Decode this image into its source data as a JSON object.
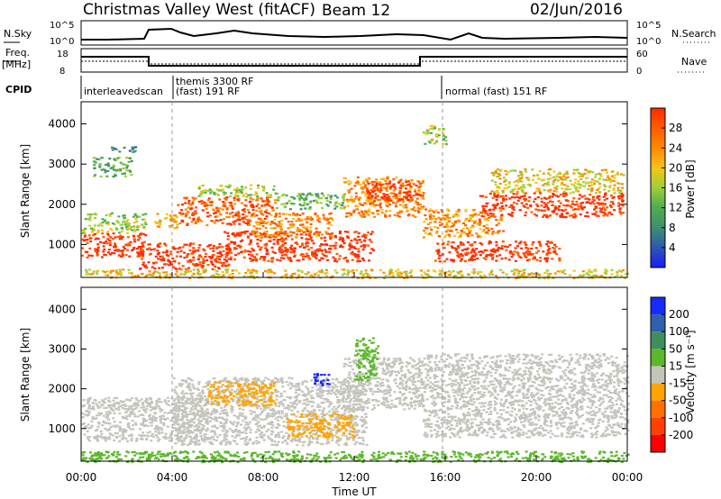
{
  "header": {
    "station": "Christmas Valley West (fitACF)",
    "beam": "Beam 12",
    "date": "02/Jun/2016"
  },
  "panels": {
    "nsky_label": "N.Sky",
    "nsearch_label": "N.Search",
    "nsky_ticks": [
      "10^5",
      "10^0"
    ],
    "nsearch_ticks": [
      "10^5",
      "10^0"
    ],
    "freq_label": "Freq.",
    "freq_unit": "[MHz]",
    "freq_ticks": [
      "18",
      "8"
    ],
    "nave_label": "Nave",
    "nave_ticks": [
      "60",
      "0"
    ],
    "cpid_label": "CPID",
    "cpid_segments": [
      "interleavedscan",
      "themis 3300 RF",
      "(fast) 191 RF",
      "normal (fast) 151 RF"
    ]
  },
  "chart_data": [
    {
      "type": "heatmap",
      "name": "power",
      "xlabel": "",
      "ylabel": "Slant Range [km]",
      "xlim": [
        0,
        24
      ],
      "ylim": [
        180,
        4550
      ],
      "yticks": [
        "1000",
        "2000",
        "3000",
        "4000"
      ],
      "colorbar": {
        "label": "Power [dB]",
        "ticks": [
          "4",
          "8",
          "12",
          "16",
          "20",
          "24",
          "28"
        ],
        "colors": [
          "#1a1aff",
          "#2c55b5",
          "#3f8f6e",
          "#4fae4f",
          "#9ccf38",
          "#f5c518",
          "#ff8a00",
          "#ff5a00",
          "#ff2a00"
        ]
      },
      "regions": [
        {
          "t": [
            0.0,
            2.8
          ],
          "r": [
            700,
            1300
          ],
          "level": 8
        },
        {
          "t": [
            0.0,
            2.8
          ],
          "r": [
            1300,
            1800
          ],
          "level": 4
        },
        {
          "t": [
            0.5,
            2.2
          ],
          "r": [
            2700,
            3200
          ],
          "level": 3
        },
        {
          "t": [
            1.2,
            2.4
          ],
          "r": [
            3300,
            3450
          ],
          "level": 2
        },
        {
          "t": [
            2.5,
            6.5
          ],
          "r": [
            400,
            1050
          ],
          "level": 8
        },
        {
          "t": [
            3.2,
            4.2
          ],
          "r": [
            1400,
            1800
          ],
          "level": 5
        },
        {
          "t": [
            4.2,
            8.5
          ],
          "r": [
            1500,
            2200
          ],
          "level": 7
        },
        {
          "t": [
            5.0,
            8.5
          ],
          "r": [
            2200,
            2500
          ],
          "level": 4
        },
        {
          "t": [
            6.2,
            12.8
          ],
          "r": [
            600,
            1350
          ],
          "level": 8
        },
        {
          "t": [
            7.5,
            11.0
          ],
          "r": [
            1200,
            1800
          ],
          "level": 6
        },
        {
          "t": [
            8.5,
            11.5
          ],
          "r": [
            1900,
            2300
          ],
          "level": 3
        },
        {
          "t": [
            11.5,
            15.0
          ],
          "r": [
            1700,
            2700
          ],
          "level": 6
        },
        {
          "t": [
            12.5,
            15.0
          ],
          "r": [
            2100,
            2600
          ],
          "level": 8
        },
        {
          "t": [
            15.0,
            18.5
          ],
          "r": [
            1200,
            1900
          ],
          "level": 6
        },
        {
          "t": [
            15.5,
            21.0
          ],
          "r": [
            600,
            1100
          ],
          "level": 8
        },
        {
          "t": [
            17.5,
            23.8
          ],
          "r": [
            1700,
            2300
          ],
          "level": 8
        },
        {
          "t": [
            18.0,
            23.8
          ],
          "r": [
            2300,
            2900
          ],
          "level": 5
        },
        {
          "t": [
            15.0,
            16.0
          ],
          "r": [
            3500,
            4000
          ],
          "level": 4
        },
        {
          "t": [
            0.0,
            24.0
          ],
          "r": [
            180,
            400
          ],
          "level": 5
        }
      ]
    },
    {
      "type": "heatmap",
      "name": "velocity",
      "xlabel": "Time UT",
      "ylabel": "Slant Range [km]",
      "xlim": [
        0,
        24
      ],
      "ylim": [
        180,
        4550
      ],
      "xticks": [
        "00:00",
        "04:00",
        "08:00",
        "12:00",
        "16:00",
        "20:00",
        "00:00"
      ],
      "yticks": [
        "1000",
        "2000",
        "3000",
        "4000"
      ],
      "colorbar": {
        "label": "Velocity [m s⁻¹]",
        "ticks": [
          "200",
          "100",
          "50",
          "15",
          "-15",
          "-50",
          "-100",
          "-200"
        ],
        "colors": [
          "#1a2aff",
          "#2f5fae",
          "#3f8f5e",
          "#5ab82a",
          "#c4c4bc",
          "#ffa500",
          "#ff7000",
          "#ff4000",
          "#ff0000"
        ]
      },
      "regions": [
        {
          "t": [
            0.0,
            5.5
          ],
          "r": [
            700,
            1800
          ],
          "level": "gray"
        },
        {
          "t": [
            4.0,
            12.5
          ],
          "r": [
            600,
            2300
          ],
          "level": "gray"
        },
        {
          "t": [
            5.5,
            8.5
          ],
          "r": [
            1600,
            2200
          ],
          "level": "orange"
        },
        {
          "t": [
            9.0,
            12.0
          ],
          "r": [
            800,
            1400
          ],
          "level": "orange"
        },
        {
          "t": [
            10.2,
            10.9
          ],
          "r": [
            2100,
            2400
          ],
          "level": "blue"
        },
        {
          "t": [
            11.5,
            15.0
          ],
          "r": [
            1500,
            2800
          ],
          "level": "gray"
        },
        {
          "t": [
            12.0,
            13.0
          ],
          "r": [
            2200,
            3300
          ],
          "level": "green"
        },
        {
          "t": [
            15.0,
            24.0
          ],
          "r": [
            800,
            2900
          ],
          "level": "gray"
        },
        {
          "t": [
            0.0,
            24.0
          ],
          "r": [
            180,
            450
          ],
          "level": "green"
        }
      ]
    }
  ]
}
